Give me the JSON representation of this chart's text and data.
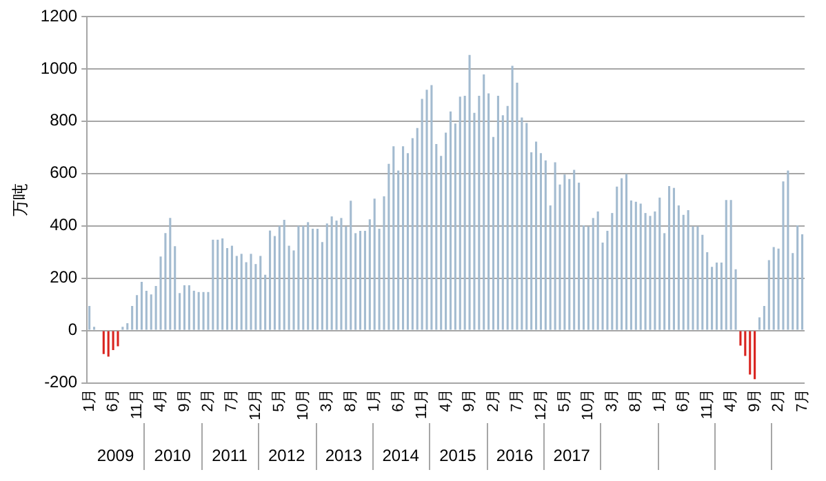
{
  "chart_data": {
    "type": "bar",
    "ylabel": "万吨",
    "categories": [
      "1月",
      null,
      null,
      null,
      null,
      "6月",
      null,
      null,
      null,
      null,
      "11月",
      null,
      null,
      null,
      null,
      "4月",
      null,
      null,
      null,
      null,
      "9月",
      null,
      null,
      null,
      null,
      "2月",
      null,
      null,
      null,
      null,
      "7月",
      null,
      null,
      null,
      null,
      "12月",
      null,
      null,
      null,
      null,
      "5月",
      null,
      null,
      null,
      null,
      "10月",
      null,
      null,
      null,
      null,
      "3月",
      null,
      null,
      null,
      null,
      "8月",
      null,
      null,
      null,
      null,
      "1月",
      null,
      null,
      null,
      null,
      "6月",
      null,
      null,
      null,
      null,
      "11月",
      null,
      null,
      null,
      null,
      "4月",
      null,
      null,
      null,
      null,
      "9月",
      null,
      null,
      null,
      null,
      "2月",
      null,
      null,
      null,
      null,
      "7月",
      null,
      null,
      null,
      null,
      "12月",
      null,
      null,
      null,
      null,
      "5月",
      null,
      null,
      null,
      null,
      "10月",
      null,
      null,
      null,
      null,
      "3月",
      null,
      null,
      null,
      null,
      "8月",
      null,
      null,
      null,
      null,
      "1月",
      null,
      null,
      null,
      null,
      "6月",
      null,
      null,
      null,
      null,
      "11月",
      null,
      null,
      null,
      null,
      "4月",
      null,
      null,
      null,
      null,
      "9月",
      null,
      null,
      null,
      null,
      "2月",
      null,
      null,
      null,
      null,
      "7月"
    ],
    "values": [
      94,
      14,
      0,
      -90,
      -100,
      -75,
      -60,
      14,
      28,
      94,
      135,
      186,
      152,
      138,
      170,
      283,
      372,
      430,
      322,
      143,
      173,
      173,
      152,
      147,
      147,
      147,
      347,
      347,
      352,
      315,
      324,
      285,
      293,
      261,
      293,
      254,
      285,
      213,
      382,
      361,
      400,
      423,
      324,
      306,
      400,
      400,
      414,
      389,
      389,
      338,
      409,
      436,
      420,
      430,
      398,
      496,
      372,
      381,
      381,
      425,
      504,
      389,
      513,
      637,
      704,
      611,
      704,
      678,
      735,
      774,
      885,
      920,
      938,
      713,
      667,
      756,
      837,
      791,
      894,
      897,
      1053,
      832,
      897,
      979,
      906,
      740,
      897,
      823,
      858,
      1012,
      947,
      814,
      793,
      681,
      722,
      678,
      650,
      478,
      643,
      558,
      596,
      579,
      614,
      565,
      402,
      398,
      430,
      455,
      336,
      381,
      449,
      550,
      582,
      598,
      497,
      492,
      485,
      449,
      438,
      455,
      508,
      372,
      552,
      545,
      478,
      442,
      460,
      398,
      398,
      366,
      299,
      243,
      260,
      260,
      499,
      499,
      234,
      -58,
      -97,
      -168,
      -186,
      50,
      94,
      269,
      319,
      313,
      570,
      611,
      296,
      402,
      368
    ],
    "colors": [
      "#a3bbd0",
      "#a3bbd0",
      "#a3bbd0",
      "#d9241f",
      "#d9241f",
      "#d9241f",
      "#d9241f",
      "#a3bbd0",
      "#a3bbd0",
      "#a3bbd0",
      "#a3bbd0",
      "#a3bbd0",
      "#a3bbd0",
      "#a3bbd0",
      "#a3bbd0",
      "#a3bbd0",
      "#a3bbd0",
      "#a3bbd0",
      "#a3bbd0",
      "#a3bbd0",
      "#a3bbd0",
      "#a3bbd0",
      "#a3bbd0",
      "#a3bbd0",
      "#a3bbd0",
      "#a3bbd0",
      "#a3bbd0",
      "#a3bbd0",
      "#a3bbd0",
      "#a3bbd0",
      "#a3bbd0",
      "#a3bbd0",
      "#a3bbd0",
      "#a3bbd0",
      "#a3bbd0",
      "#a3bbd0",
      "#a3bbd0",
      "#a3bbd0",
      "#a3bbd0",
      "#a3bbd0",
      "#a3bbd0",
      "#a3bbd0",
      "#a3bbd0",
      "#a3bbd0",
      "#a3bbd0",
      "#a3bbd0",
      "#a3bbd0",
      "#a3bbd0",
      "#a3bbd0",
      "#a3bbd0",
      "#a3bbd0",
      "#a3bbd0",
      "#a3bbd0",
      "#a3bbd0",
      "#a3bbd0",
      "#a3bbd0",
      "#a3bbd0",
      "#a3bbd0",
      "#a3bbd0",
      "#a3bbd0",
      "#a3bbd0",
      "#a3bbd0",
      "#a3bbd0",
      "#a3bbd0",
      "#a3bbd0",
      "#a3bbd0",
      "#a3bbd0",
      "#a3bbd0",
      "#a3bbd0",
      "#a3bbd0",
      "#a3bbd0",
      "#a3bbd0",
      "#a3bbd0",
      "#a3bbd0",
      "#a3bbd0",
      "#a3bbd0",
      "#a3bbd0",
      "#a3bbd0",
      "#a3bbd0",
      "#a3bbd0",
      "#a3bbd0",
      "#a3bbd0",
      "#a3bbd0",
      "#a3bbd0",
      "#a3bbd0",
      "#a3bbd0",
      "#a3bbd0",
      "#a3bbd0",
      "#a3bbd0",
      "#a3bbd0",
      "#a3bbd0",
      "#a3bbd0",
      "#a3bbd0",
      "#a3bbd0",
      "#a3bbd0",
      "#a3bbd0",
      "#a3bbd0",
      "#a3bbd0",
      "#a3bbd0",
      "#a3bbd0",
      "#a3bbd0",
      "#a3bbd0",
      "#a3bbd0",
      "#a3bbd0",
      "#a3bbd0",
      "#a3bbd0",
      "#a3bbd0",
      "#a3bbd0",
      "#a3bbd0",
      "#a3bbd0",
      "#a3bbd0",
      "#a3bbd0",
      "#a3bbd0",
      "#a3bbd0",
      "#a3bbd0",
      "#a3bbd0",
      "#a3bbd0",
      "#a3bbd0",
      "#a3bbd0",
      "#a3bbd0",
      "#a3bbd0",
      "#a3bbd0",
      "#a3bbd0",
      "#a3bbd0",
      "#a3bbd0",
      "#a3bbd0",
      "#a3bbd0",
      "#a3bbd0",
      "#a3bbd0",
      "#a3bbd0",
      "#a3bbd0",
      "#a3bbd0",
      "#a3bbd0",
      "#a3bbd0",
      "#a3bbd0",
      "#a3bbd0",
      "#a3bbd0",
      "#d9241f",
      "#d9241f",
      "#d9241f",
      "#d9241f",
      "#a3bbd0",
      "#a3bbd0",
      "#a3bbd0",
      "#a3bbd0",
      "#a3bbd0",
      "#a3bbd0",
      "#a3bbd0",
      "#a3bbd0",
      "#a3bbd0",
      "#a3bbd0"
    ],
    "ylim": [
      -200,
      1200
    ],
    "yticks": [
      -200,
      0,
      200,
      400,
      600,
      800,
      1000,
      1200
    ],
    "grid": "y",
    "annotations": [
      "2009",
      "2010",
      "2011",
      "2012",
      "2013",
      "2014",
      "2015",
      "2016",
      "2017"
    ]
  }
}
